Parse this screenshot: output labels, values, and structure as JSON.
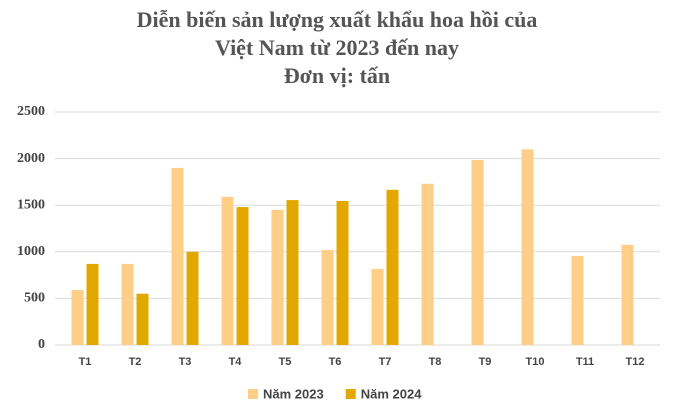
{
  "chart_data": {
    "type": "bar",
    "title": [
      "Diễn biến sản lượng xuất khẩu hoa hồi của",
      "Việt Nam từ 2023 đến nay"
    ],
    "subtitle": "Đơn vị: tấn",
    "categories": [
      "T1",
      "T2",
      "T3",
      "T4",
      "T5",
      "T6",
      "T7",
      "T8",
      "T9",
      "T10",
      "T11",
      "T12"
    ],
    "series": [
      {
        "name": "Năm 2023",
        "color": "#FFCF87",
        "values": [
          590,
          870,
          1900,
          1590,
          1450,
          1020,
          815,
          1730,
          1985,
          2100,
          955,
          1075
        ]
      },
      {
        "name": "Năm 2024",
        "color": "#E2A800",
        "values": [
          870,
          550,
          1000,
          1480,
          1555,
          1545,
          1665,
          null,
          null,
          null,
          null,
          null
        ]
      }
    ],
    "ylim": [
      0,
      2500
    ],
    "yticks": [
      0,
      500,
      1000,
      1500,
      2000,
      2500
    ],
    "grid": true,
    "legend": "bottom"
  }
}
